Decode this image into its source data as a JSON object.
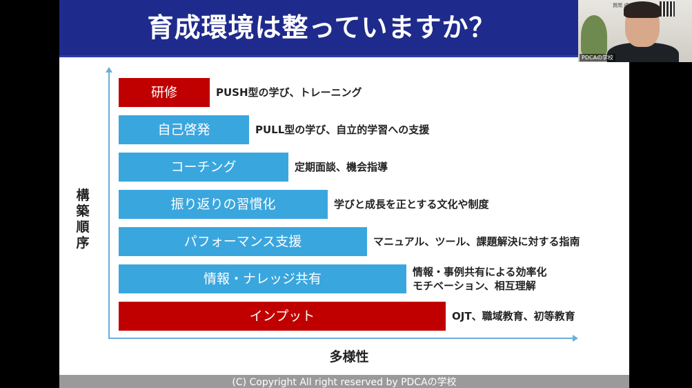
{
  "slide": {
    "title": "育成環境は整っていますか？",
    "y_axis_label": "構\n築\n順\n序",
    "x_axis_label": "多様性",
    "footer": "(C) Copyright All right reserved by PDCAの学校",
    "rows": [
      {
        "label": "研修",
        "lines": [
          "PUSH型の学び、トレーニング"
        ],
        "color": "#c00000"
      },
      {
        "label": "自己啓発",
        "lines": [
          "PULL型の学び、自立的学習への支援"
        ],
        "color": "#3aa6de"
      },
      {
        "label": "コーチング",
        "lines": [
          "定期面談、機会指導"
        ],
        "color": "#3aa6de"
      },
      {
        "label": "振り返りの習慣化",
        "lines": [
          "学びと成長を正とする文化や制度"
        ],
        "color": "#3aa6de"
      },
      {
        "label": "パフォーマンス支援",
        "lines": [
          "マニュアル、ツール、課題解決に対する指南"
        ],
        "color": "#3aa6de"
      },
      {
        "label": "情報・ナレッジ共有",
        "lines": [
          "情報・事例共有による効率化",
          "モチベーション、相互理解"
        ],
        "color": "#3aa6de"
      },
      {
        "label": "インプット",
        "lines": [
          "OJT、職域教育、初等教育"
        ],
        "color": "#c00000"
      }
    ]
  },
  "webcam": {
    "caption": "PDCAの学校",
    "logo_text": "質問 成長"
  }
}
